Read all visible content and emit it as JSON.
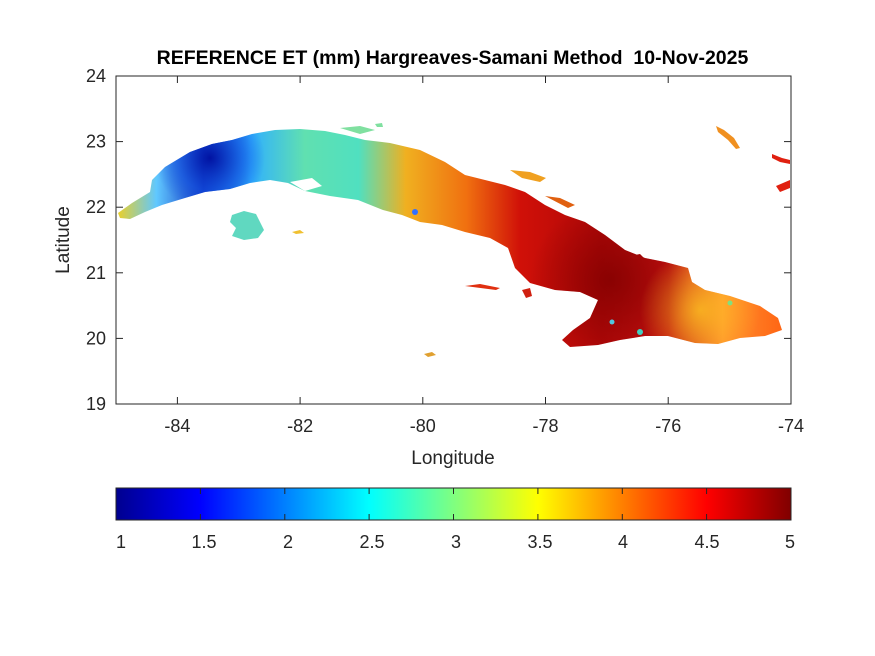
{
  "title": "REFERENCE ET (mm) Hargreaves-Samani Method  10-Nov-2025",
  "map": {
    "region": "Cuba",
    "variable": "Reference evapotranspiration",
    "units": "mm",
    "date": "10-Nov-2025",
    "method": "Hargreaves-Samani",
    "x_axis": {
      "label": "Longitude",
      "min": -85,
      "max": -74,
      "ticks": [
        -84,
        -82,
        -80,
        -78,
        -76,
        -74
      ]
    },
    "y_axis": {
      "label": "Latitude",
      "min": 19,
      "max": 24,
      "ticks": [
        19,
        20,
        21,
        22,
        23,
        24
      ]
    }
  },
  "colorbar": {
    "colormap": "jet",
    "min": 1,
    "max": 5,
    "ticks": [
      1,
      1.5,
      2,
      2.5,
      3,
      3.5,
      4,
      4.5,
      5
    ],
    "tick_labels": [
      "1",
      "1.5",
      "2",
      "2.5",
      "3",
      "3.5",
      "4",
      "4.5",
      "5"
    ]
  }
}
